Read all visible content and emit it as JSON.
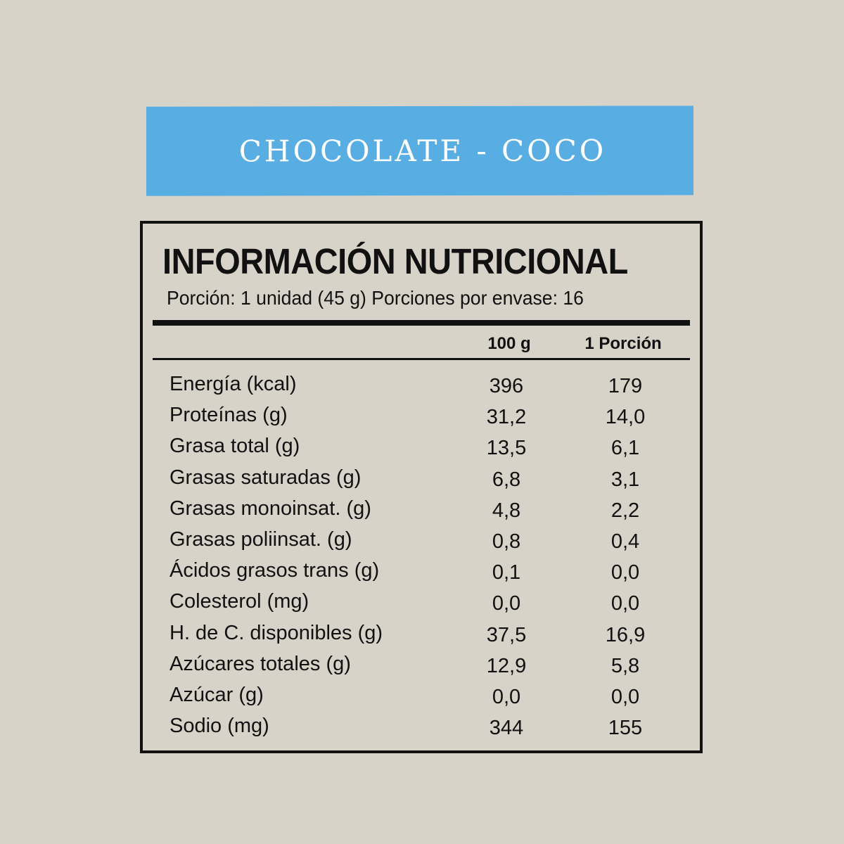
{
  "banner": {
    "title": "CHOCOLATE - COCO",
    "color": "#58aee3"
  },
  "label": {
    "title": "INFORMACIÓN NUTRICIONAL",
    "serving": "Porción: 1 unidad (45 g) Porciones por envase: 16",
    "columns": [
      "100 g",
      "1 Porción"
    ],
    "rows": [
      {
        "name": "Energía (kcal)",
        "per100": "396",
        "perPortion": "179"
      },
      {
        "name": "Proteínas (g)",
        "per100": "31,2",
        "perPortion": "14,0"
      },
      {
        "name": "Grasa total (g)",
        "per100": "13,5",
        "perPortion": "6,1"
      },
      {
        "name": "Grasas saturadas (g)",
        "per100": "6,8",
        "perPortion": "3,1"
      },
      {
        "name": "Grasas monoinsat. (g)",
        "per100": "4,8",
        "perPortion": "2,2"
      },
      {
        "name": "Grasas poliinsat. (g)",
        "per100": "0,8",
        "perPortion": "0,4"
      },
      {
        "name": "Ácidos grasos trans (g)",
        "per100": "0,1",
        "perPortion": "0,0"
      },
      {
        "name": "Colesterol (mg)",
        "per100": "0,0",
        "perPortion": "0,0"
      },
      {
        "name": "H. de C. disponibles (g)",
        "per100": "37,5",
        "perPortion": "16,9"
      },
      {
        "name": "Azúcares totales (g)",
        "per100": "12,9",
        "perPortion": "5,8"
      },
      {
        "name": "Azúcar (g)",
        "per100": "0,0",
        "perPortion": "0,0"
      },
      {
        "name": "Sodio (mg)",
        "per100": "344",
        "perPortion": "155"
      }
    ]
  }
}
